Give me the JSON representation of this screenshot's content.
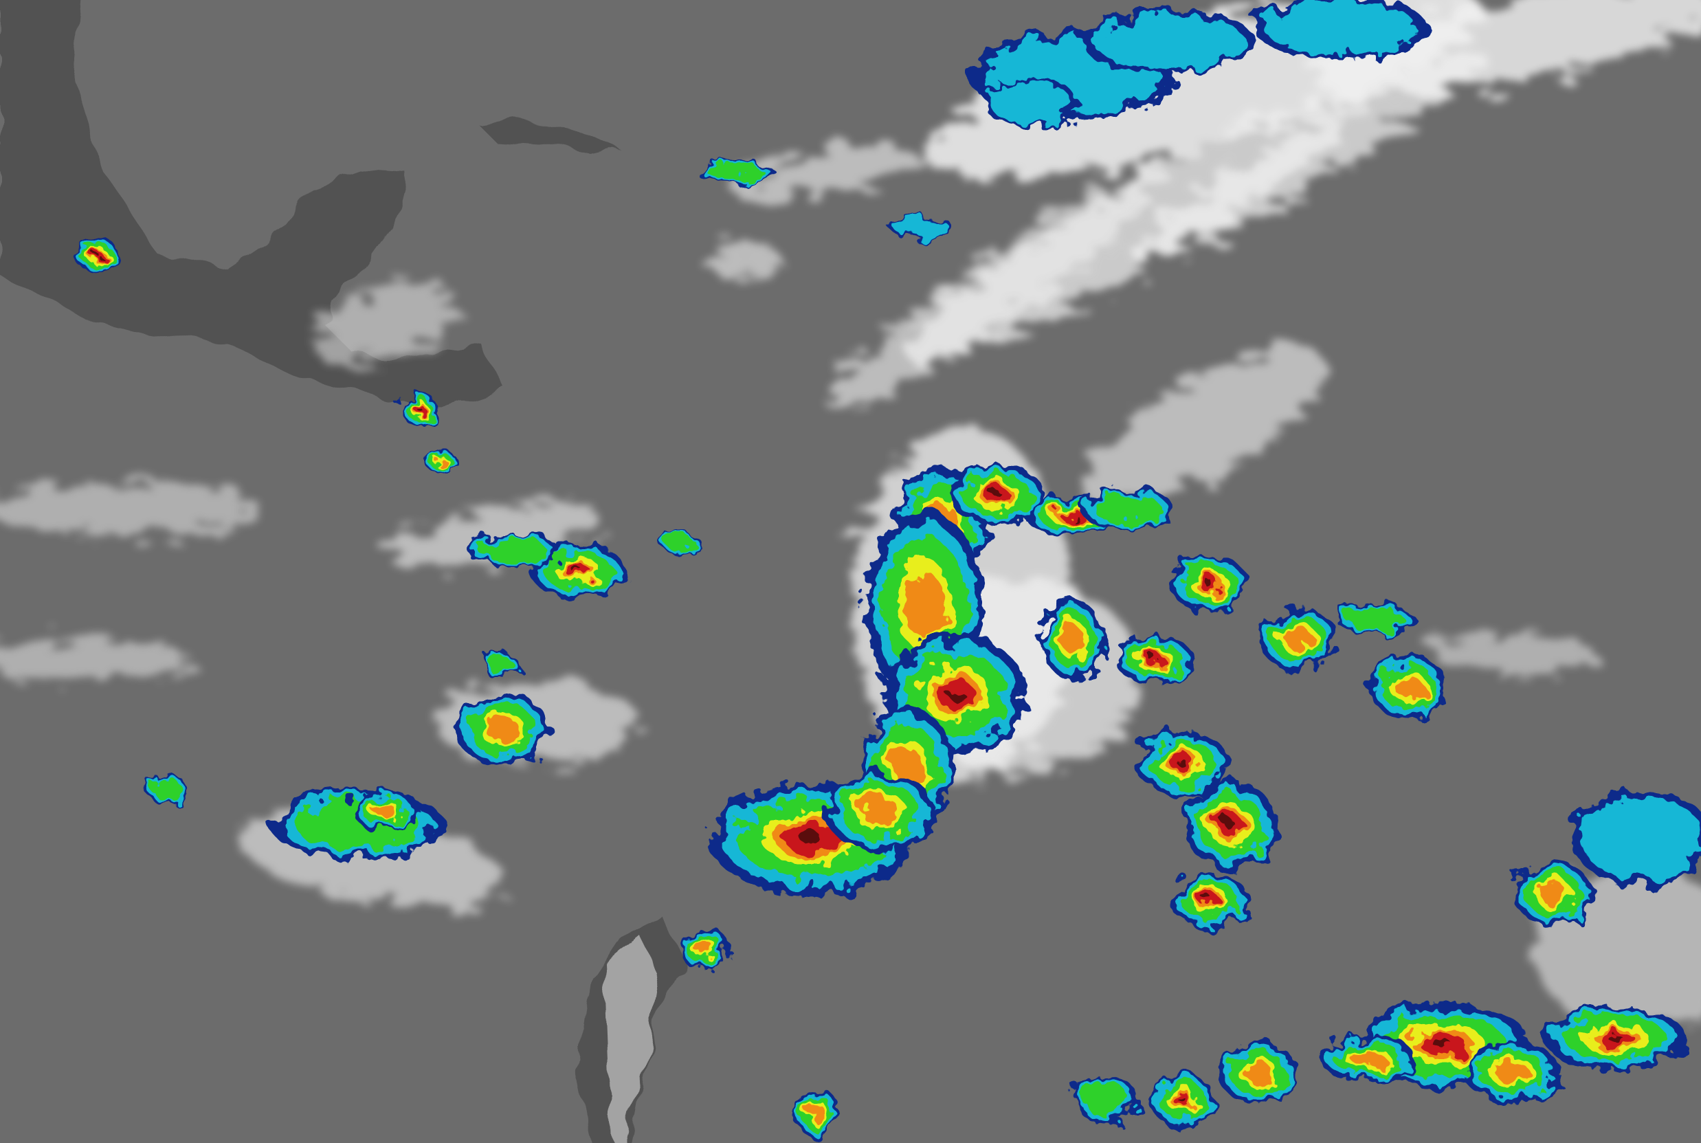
{
  "image": {
    "palette": {
      "ocean": "#6c6c6c",
      "land": "#4a4a4a",
      "cloud_white": "#f2f2f2",
      "cold_blue": "#0a2a8a",
      "cyan": "#13b7d6",
      "green": "#2fd12a",
      "yellow": "#e8ee1a",
      "orange": "#f08a12",
      "red": "#c8121a",
      "dark_red": "#5a0a0a"
    }
  }
}
